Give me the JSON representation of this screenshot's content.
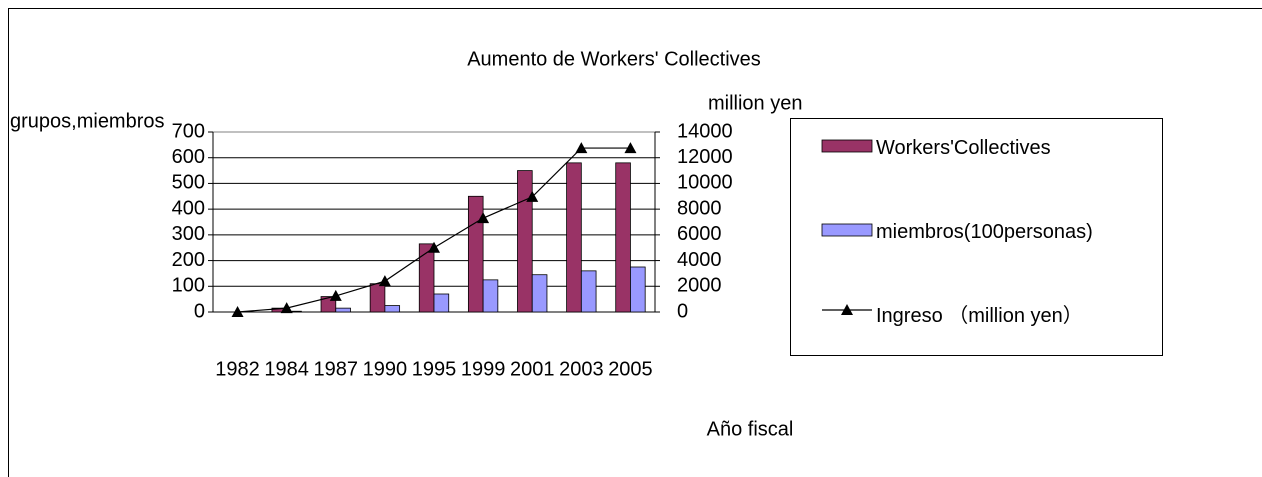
{
  "chart_data": {
    "type": "bar",
    "title": "Aumento de    Workers' Collectives",
    "y_label": "grupos,miembros",
    "y2_label": "million yen",
    "x_label": "Año fiscal",
    "categories": [
      "1982",
      "1984",
      "1987",
      "1990",
      "1995",
      "1999",
      "2001",
      "2003",
      "2005"
    ],
    "series": [
      {
        "name": "Workers'Collectives",
        "type": "bar",
        "color": "#993366",
        "values": [
          0,
          15,
          60,
          110,
          265,
          450,
          550,
          580,
          580
        ]
      },
      {
        "name": "miembros(100personas)",
        "type": "bar",
        "color": "#9999ff",
        "values": [
          0,
          3,
          15,
          25,
          70,
          125,
          145,
          160,
          175
        ]
      },
      {
        "name": "Ingreso （million yen）",
        "type": "line",
        "axis": "y2",
        "color": "#000000",
        "marker": "triangle",
        "values": [
          0,
          300,
          1250,
          2400,
          5000,
          7300,
          8950,
          12750,
          12750
        ]
      }
    ],
    "ylim": [
      0,
      700
    ],
    "yticks": [
      0,
      100,
      200,
      300,
      400,
      500,
      600,
      700
    ],
    "y2lim": [
      0,
      14000
    ],
    "y2ticks": [
      0,
      2000,
      4000,
      6000,
      8000,
      10000,
      12000,
      14000
    ],
    "grid": true,
    "legend": "right"
  }
}
